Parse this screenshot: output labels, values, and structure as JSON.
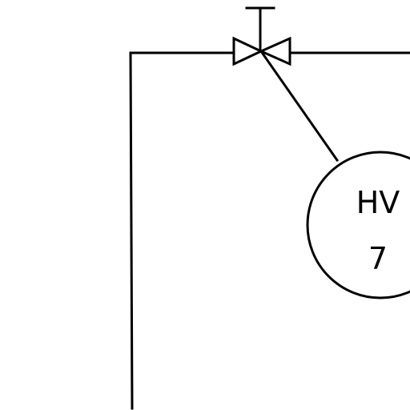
{
  "instrument": {
    "function_code": "HV",
    "loop_number": "7"
  },
  "colors": {
    "line": "#000000",
    "background": "#ffffff"
  }
}
